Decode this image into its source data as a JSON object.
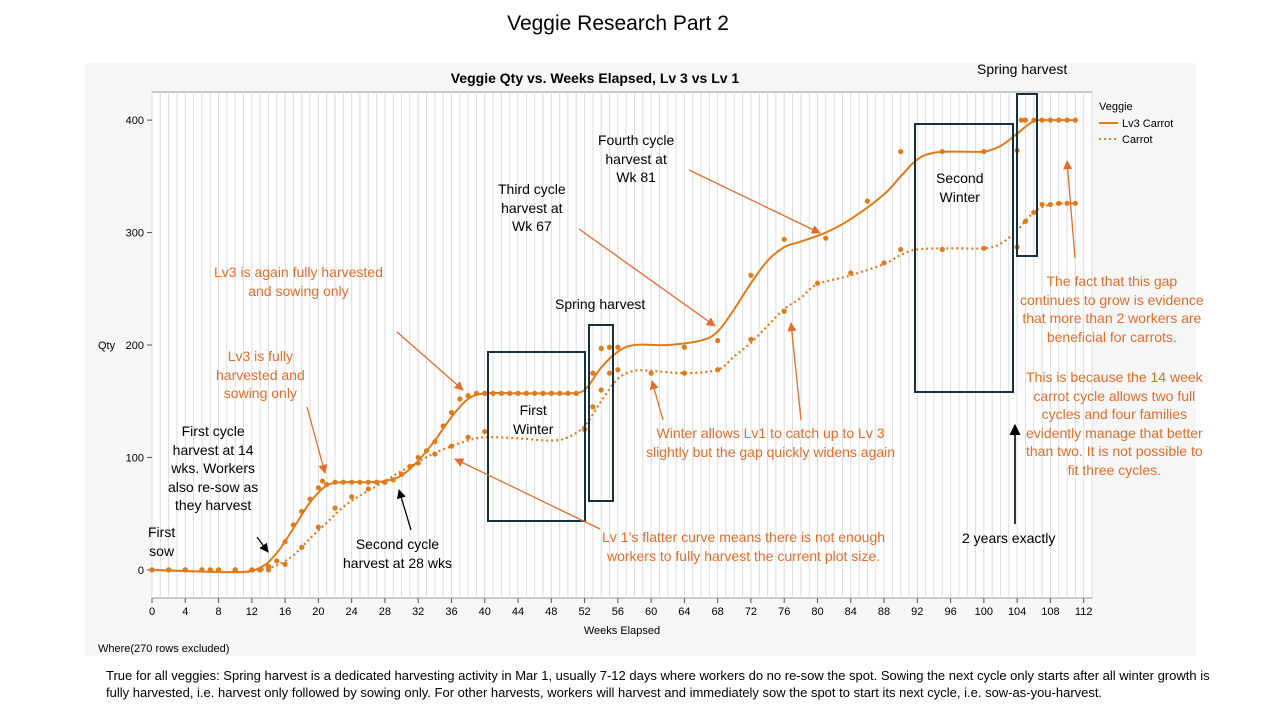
{
  "slide_title": "Veggie Research Part 2",
  "chart_data": {
    "type": "scatter",
    "title": "Veggie Qty vs. Weeks Elapsed, Lv 3 vs Lv 1",
    "xlabel": "Weeks Elapsed",
    "ylabel": "Qty",
    "xlim": [
      0,
      113
    ],
    "ylim": [
      -25,
      425
    ],
    "x_ticks": [
      0,
      4,
      8,
      12,
      16,
      20,
      24,
      28,
      32,
      36,
      40,
      44,
      48,
      52,
      56,
      60,
      64,
      68,
      72,
      76,
      80,
      84,
      88,
      92,
      96,
      100,
      104,
      108,
      112
    ],
    "y_ticks": [
      0,
      100,
      200,
      300,
      400
    ],
    "grid": "vertical lines every week",
    "legend_title": "Veggie",
    "legend_position": "right",
    "footer": "Where(270 rows excluded)",
    "series": [
      {
        "name": "Lv3 Carrot",
        "line_style": "solid",
        "color": "#e07b1a",
        "points": [
          [
            0,
            0
          ],
          [
            2,
            0
          ],
          [
            4,
            0
          ],
          [
            6,
            0
          ],
          [
            7,
            0
          ],
          [
            8,
            0
          ],
          [
            10,
            0
          ],
          [
            12,
            0
          ],
          [
            13,
            0
          ],
          [
            14,
            3
          ],
          [
            15,
            8
          ],
          [
            16,
            25
          ],
          [
            17,
            40
          ],
          [
            18,
            52
          ],
          [
            19,
            63
          ],
          [
            20,
            73
          ],
          [
            20.5,
            79
          ],
          [
            21,
            76
          ],
          [
            22,
            78
          ],
          [
            23,
            78
          ],
          [
            24,
            78
          ],
          [
            25,
            78
          ],
          [
            26,
            78
          ],
          [
            27,
            78
          ],
          [
            28,
            78
          ],
          [
            29,
            80
          ],
          [
            30,
            85
          ],
          [
            31,
            92
          ],
          [
            32,
            100
          ],
          [
            33,
            106
          ],
          [
            34,
            114
          ],
          [
            35,
            128
          ],
          [
            36,
            140
          ],
          [
            37,
            152
          ],
          [
            38,
            155
          ],
          [
            39,
            157
          ],
          [
            40,
            157
          ],
          [
            41,
            157
          ],
          [
            42,
            157
          ],
          [
            43,
            157
          ],
          [
            44,
            157
          ],
          [
            45,
            157
          ],
          [
            46,
            157
          ],
          [
            47,
            157
          ],
          [
            48,
            157
          ],
          [
            49,
            157
          ],
          [
            50,
            157
          ],
          [
            51,
            157
          ],
          [
            52,
            125
          ],
          [
            53,
            175
          ],
          [
            54,
            197
          ],
          [
            55,
            198
          ],
          [
            56,
            198
          ],
          [
            64,
            198
          ],
          [
            68,
            204
          ],
          [
            72,
            262
          ],
          [
            76,
            294
          ],
          [
            81,
            295
          ],
          [
            86,
            328
          ],
          [
            90,
            372
          ],
          [
            95,
            372
          ],
          [
            100,
            372
          ],
          [
            104,
            373
          ],
          [
            104.5,
            400
          ],
          [
            105,
            400
          ],
          [
            106,
            400
          ],
          [
            107,
            400
          ],
          [
            108,
            400
          ],
          [
            109,
            400
          ],
          [
            110,
            400
          ],
          [
            111,
            400
          ]
        ],
        "smooth_curve": [
          [
            0,
            0
          ],
          [
            10,
            -2
          ],
          [
            13,
            2
          ],
          [
            15,
            15
          ],
          [
            17,
            37
          ],
          [
            19,
            60
          ],
          [
            21,
            75
          ],
          [
            23,
            78
          ],
          [
            26,
            78
          ],
          [
            28,
            79
          ],
          [
            30,
            84
          ],
          [
            32,
            97
          ],
          [
            34,
            115
          ],
          [
            36,
            136
          ],
          [
            38,
            152
          ],
          [
            40,
            157
          ],
          [
            44,
            157
          ],
          [
            48,
            157
          ],
          [
            50,
            157
          ],
          [
            52,
            160
          ],
          [
            54,
            180
          ],
          [
            56,
            194
          ],
          [
            58,
            200
          ],
          [
            62,
            200
          ],
          [
            66,
            204
          ],
          [
            68,
            212
          ],
          [
            70,
            232
          ],
          [
            72,
            255
          ],
          [
            74,
            275
          ],
          [
            76,
            287
          ],
          [
            78,
            292
          ],
          [
            81,
            300
          ],
          [
            84,
            312
          ],
          [
            88,
            334
          ],
          [
            90,
            350
          ],
          [
            92,
            365
          ],
          [
            94,
            371
          ],
          [
            97,
            372
          ],
          [
            100,
            372
          ],
          [
            102,
            377
          ],
          [
            104,
            388
          ],
          [
            106,
            399
          ],
          [
            108,
            400
          ],
          [
            111,
            400
          ]
        ]
      },
      {
        "name": "Carrot",
        "line_style": "dotted",
        "color": "#e07b1a",
        "points": [
          [
            0,
            0
          ],
          [
            2,
            0
          ],
          [
            4,
            0
          ],
          [
            6,
            0
          ],
          [
            8,
            0
          ],
          [
            10,
            0
          ],
          [
            12,
            0
          ],
          [
            14,
            0
          ],
          [
            16,
            5
          ],
          [
            18,
            20
          ],
          [
            20,
            38
          ],
          [
            22,
            55
          ],
          [
            24,
            65
          ],
          [
            26,
            72
          ],
          [
            28,
            78
          ],
          [
            30,
            85
          ],
          [
            32,
            95
          ],
          [
            34,
            103
          ],
          [
            36,
            110
          ],
          [
            38,
            118
          ],
          [
            40,
            123
          ],
          [
            52,
            125
          ],
          [
            53,
            145
          ],
          [
            54,
            160
          ],
          [
            55,
            175
          ],
          [
            56,
            178
          ],
          [
            60,
            175
          ],
          [
            64,
            175
          ],
          [
            68,
            178
          ],
          [
            72,
            205
          ],
          [
            76,
            230
          ],
          [
            80,
            255
          ],
          [
            84,
            264
          ],
          [
            88,
            273
          ],
          [
            90,
            285
          ],
          [
            95,
            285
          ],
          [
            100,
            286
          ],
          [
            104,
            287
          ],
          [
            105,
            310
          ],
          [
            106,
            318
          ],
          [
            107,
            325
          ],
          [
            108,
            325
          ],
          [
            109,
            326
          ],
          [
            110,
            326
          ],
          [
            111,
            326
          ]
        ],
        "smooth_curve": [
          [
            0,
            0
          ],
          [
            10,
            -2
          ],
          [
            13,
            0
          ],
          [
            15,
            4
          ],
          [
            17,
            13
          ],
          [
            19,
            28
          ],
          [
            21,
            42
          ],
          [
            23,
            56
          ],
          [
            25,
            66
          ],
          [
            28,
            79
          ],
          [
            30,
            88
          ],
          [
            32,
            96
          ],
          [
            34,
            104
          ],
          [
            36,
            110
          ],
          [
            38,
            115
          ],
          [
            40,
            118
          ],
          [
            44,
            117
          ],
          [
            48,
            115
          ],
          [
            50,
            118
          ],
          [
            52,
            128
          ],
          [
            54,
            150
          ],
          [
            56,
            170
          ],
          [
            58,
            177
          ],
          [
            60,
            177
          ],
          [
            64,
            175
          ],
          [
            68,
            178
          ],
          [
            70,
            190
          ],
          [
            72,
            202
          ],
          [
            74,
            217
          ],
          [
            76,
            232
          ],
          [
            78,
            242
          ],
          [
            80,
            254
          ],
          [
            84,
            262
          ],
          [
            88,
            272
          ],
          [
            90,
            280
          ],
          [
            92,
            285
          ],
          [
            96,
            286
          ],
          [
            100,
            286
          ],
          [
            102,
            290
          ],
          [
            104,
            302
          ],
          [
            106,
            318
          ],
          [
            108,
            325
          ],
          [
            111,
            326
          ]
        ]
      }
    ]
  },
  "annotations": {
    "first_sow": "First\nsow",
    "first_cycle": "First cycle\nharvest at 14\nwks. Workers\nalso re-sow as\nthey harvest",
    "second_cycle": "Second cycle\nharvest at 28 wks",
    "lv3_fully_harvested": "Lv3 is fully\nharvested and\nsowing only",
    "lv3_again": "Lv3 is again fully harvested\nand sowing only",
    "first_winter": "First\nWinter",
    "spring_harvest_1": "Spring harvest",
    "third_cycle": "Third cycle\nharvest at\nWk 67",
    "fourth_cycle": "Fourth cycle\nharvest at\nWk 81",
    "winter_allows": "Winter allows Lv1 to catch up to Lv 3\nslightly but the gap quickly widens again",
    "lv1_flatter": "Lv 1’s flatter curve means there is not enough\nworkers to fully harvest the current plot size.",
    "second_winter": "Second\nWinter",
    "spring_harvest_2": "Spring harvest",
    "two_years": "2 years exactly",
    "gap_grows": "The fact that this gap\ncontinues to grow is evidence\nthat more than 2 workers are\nbeneficial for carrots.",
    "because": "This is because the 14 week\ncarrot cycle allows two full\ncycles and four families\nevidently manage that better\nthan two. It is not possible to\nfit three cycles."
  },
  "footnote": "True for all veggies: Spring harvest is a dedicated harvesting activity in Mar 1, usually 7-12 days where workers do no re-sow the spot. Sowing the next cycle only starts after all winter growth is fully harvested, i.e. harvest only followed by sowing only. For other harvests, workers will harvest and immediately sow the spot to start its next cycle, i.e. sow-as-you-harvest."
}
